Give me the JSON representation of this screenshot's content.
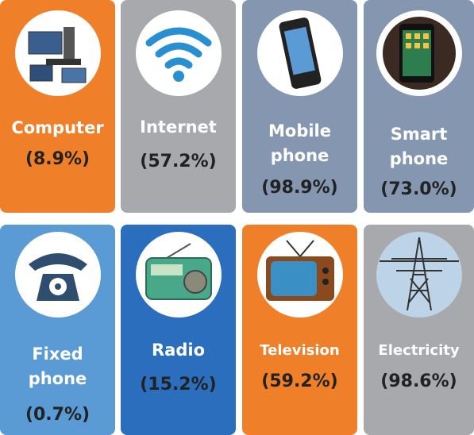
{
  "tiles": [
    {
      "label": "Computer",
      "value": "(8.9%)"
    },
    {
      "label": "Internet",
      "value": "(57.2%)"
    },
    {
      "label": "Mobile phone",
      "value": "(98.9%)"
    },
    {
      "label": "Smart phone",
      "value": "(73.0%)"
    },
    {
      "label": "Fixed phone",
      "value": "(0.7%)"
    },
    {
      "label": "Radio",
      "value": "(15.2%)"
    },
    {
      "label": "Television",
      "value": "(59.2%)"
    },
    {
      "label": "Electricity",
      "value": "(98.6%)"
    }
  ]
}
